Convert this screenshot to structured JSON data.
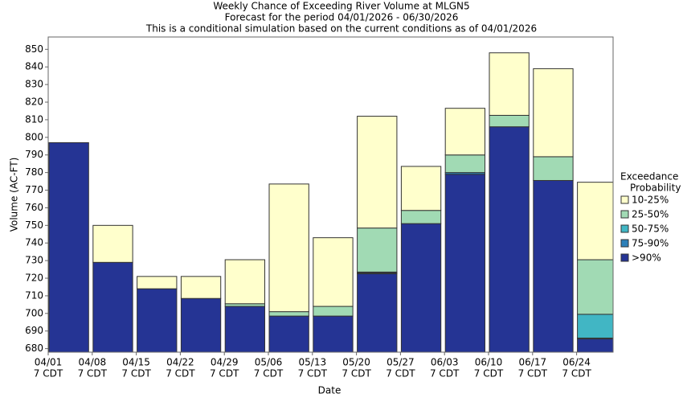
{
  "chart_data": {
    "type": "bar",
    "title": [
      "Weekly Chance of Exceeding River Volume at MLGN5",
      "Forecast for the period 04/01/2026 - 06/30/2026",
      "This is a conditional simulation based on the current conditions as of 04/01/2026"
    ],
    "x_label": "Date",
    "y_label": "Volume (AC-FT)",
    "legend_title": [
      "Exceedance",
      "Probability"
    ],
    "categories": [
      [
        "04/01",
        "7 CDT"
      ],
      [
        "04/08",
        "7 CDT"
      ],
      [
        "04/15",
        "7 CDT"
      ],
      [
        "04/22",
        "7 CDT"
      ],
      [
        "04/29",
        "7 CDT"
      ],
      [
        "05/06",
        "7 CDT"
      ],
      [
        "05/13",
        "7 CDT"
      ],
      [
        "05/20",
        "7 CDT"
      ],
      [
        "05/27",
        "7 CDT"
      ],
      [
        "06/03",
        "7 CDT"
      ],
      [
        "06/10",
        "7 CDT"
      ],
      [
        "06/17",
        "7 CDT"
      ],
      [
        "06/24",
        "7 CDT"
      ]
    ],
    "series": [
      {
        "name": ">90%",
        "color": "#253494",
        "values": [
          797,
          729,
          714,
          708.5,
          704,
          698.5,
          698.5,
          722.5,
          751,
          779,
          806,
          775.5,
          685.5
        ]
      },
      {
        "name": "75-90%",
        "color": "#2c7fb8",
        "values": [
          797,
          729,
          714,
          708.5,
          704,
          698.5,
          698.5,
          723,
          751,
          780,
          806,
          775.5,
          686
        ]
      },
      {
        "name": "50-75%",
        "color": "#41b6c4",
        "values": [
          797,
          729,
          714,
          708.5,
          704,
          698.5,
          698.5,
          723.5,
          751,
          780,
          806,
          775.5,
          699.5
        ]
      },
      {
        "name": "25-50%",
        "color": "#a1dab4",
        "values": [
          797,
          729,
          714,
          708.5,
          705.5,
          701,
          704,
          748.5,
          758.5,
          790,
          812.5,
          789,
          730.5
        ]
      },
      {
        "name": "10-25%",
        "color": "#ffffcc",
        "values": [
          797,
          750,
          721,
          721,
          730.5,
          773.5,
          743,
          812,
          783.5,
          816.5,
          848,
          839,
          774.5
        ]
      }
    ],
    "ylim": [
      678,
      857
    ],
    "yticks": [
      680,
      690,
      700,
      710,
      720,
      730,
      740,
      750,
      760,
      770,
      780,
      790,
      800,
      810,
      820,
      830,
      840,
      850
    ]
  }
}
